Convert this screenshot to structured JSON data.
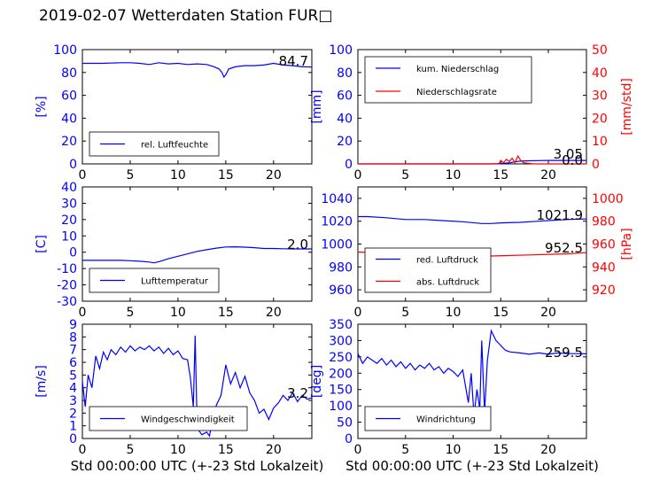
{
  "title": "2019-02-07 Wetterdaten Station FUR□",
  "colors": {
    "blue": "#0000ff",
    "red": "#ff0000",
    "black": "#000000"
  },
  "chart_data": [
    {
      "type": "line",
      "xlim": [
        0,
        24
      ],
      "xticks": [
        0,
        5,
        10,
        15,
        20
      ],
      "ylabel": "[%]",
      "ylim": [
        0,
        100
      ],
      "yticks": [
        0,
        20,
        40,
        60,
        80,
        100
      ],
      "legend": {
        "placement": "lower-left",
        "entries": [
          "rel. Luftfeuchte"
        ]
      },
      "annotations": [
        "84.7"
      ],
      "series": [
        {
          "name": "rel. Luftfeuchte",
          "color": "#0000ff",
          "x": [
            0,
            2,
            4,
            5,
            6,
            7,
            8,
            9,
            10,
            11,
            12,
            13,
            13.8,
            14.3,
            14.6,
            14.8,
            15,
            15.3,
            16,
            17,
            18,
            19,
            20,
            21,
            22,
            23,
            24
          ],
          "y": [
            88,
            88,
            88.5,
            88.5,
            88,
            87,
            88.5,
            87.5,
            88,
            87,
            87.5,
            87,
            85,
            83,
            80,
            76,
            78,
            83,
            85,
            86,
            86,
            86.5,
            88,
            86.5,
            86,
            85,
            84.7
          ]
        }
      ]
    },
    {
      "type": "line",
      "xlim": [
        0,
        24
      ],
      "xticks": [
        0,
        5,
        10,
        15,
        20
      ],
      "ylabel": "[mm]",
      "ylim": [
        0,
        100
      ],
      "yticks": [
        0,
        20,
        40,
        60,
        80,
        100
      ],
      "y2label": "[mm/std]",
      "y2lim": [
        0,
        50
      ],
      "y2ticks": [
        0,
        10,
        20,
        30,
        40,
        50
      ],
      "legend": {
        "placement": "upper-left",
        "entries": [
          "kum. Niederschlag",
          "Niederschlagsrate"
        ]
      },
      "annotations": [
        "3.05",
        "0.0"
      ],
      "series": [
        {
          "name": "kum. Niederschlag",
          "color": "#0000ff",
          "axis": "left",
          "x": [
            0,
            14,
            15,
            16,
            16.5,
            17,
            18,
            19,
            20,
            21,
            22,
            24
          ],
          "y": [
            0,
            0,
            0.3,
            1.0,
            1.8,
            2.4,
            2.7,
            2.9,
            3.0,
            3.05,
            3.05,
            3.05
          ]
        },
        {
          "name": "Niederschlagsrate",
          "color": "#ff0000",
          "axis": "right",
          "x": [
            0,
            14.8,
            15,
            15.3,
            15.6,
            15.9,
            16.2,
            16.5,
            16.8,
            17.1,
            17.4,
            17.8,
            18.5,
            24
          ],
          "y": [
            0,
            0,
            1.5,
            0.5,
            2.0,
            1.0,
            2.5,
            0.5,
            3.5,
            1.5,
            0.5,
            0.3,
            0,
            0
          ]
        }
      ]
    },
    {
      "type": "line",
      "xlim": [
        0,
        24
      ],
      "xticks": [
        0,
        5,
        10,
        15,
        20
      ],
      "ylabel": "[C]",
      "ylim": [
        -30,
        40
      ],
      "yticks": [
        -30,
        -20,
        -10,
        0,
        10,
        20,
        30,
        40
      ],
      "legend": {
        "placement": "lower-left",
        "entries": [
          "Lufttemperatur"
        ]
      },
      "annotations": [
        "2.0"
      ],
      "series": [
        {
          "name": "Lufttemperatur",
          "color": "#0000ff",
          "x": [
            0,
            2,
            4,
            5,
            6,
            7,
            7.5,
            8,
            9,
            10,
            11,
            12,
            13,
            14,
            15,
            16,
            17,
            18,
            19,
            20,
            21,
            22,
            23,
            24
          ],
          "y": [
            -5,
            -5,
            -5,
            -5.2,
            -5.5,
            -6,
            -6.5,
            -5.8,
            -4,
            -2.5,
            -1,
            0.5,
            1.5,
            2.5,
            3.2,
            3.3,
            3.1,
            2.8,
            2.3,
            2.3,
            2.1,
            2.0,
            2.0,
            2.0
          ]
        }
      ]
    },
    {
      "type": "line",
      "xlim": [
        0,
        24
      ],
      "xticks": [
        0,
        5,
        10,
        15,
        20
      ],
      "ylim": [
        950,
        1050
      ],
      "yticks": [
        960,
        980,
        1000,
        1020,
        1040
      ],
      "y2label": "[hPa]",
      "y2lim": [
        910,
        1010
      ],
      "y2ticks": [
        920,
        940,
        960,
        980,
        1000
      ],
      "legend": {
        "placement": "lower-left",
        "entries": [
          "red. Luftdruck",
          "abs. Luftdruck"
        ]
      },
      "annotations": [
        "1021.9",
        "952.5"
      ],
      "series": [
        {
          "name": "red. Luftdruck",
          "color": "#0000ff",
          "axis": "left",
          "x": [
            0,
            1,
            3,
            5,
            7,
            9,
            11,
            13,
            14,
            15,
            17,
            19,
            21,
            22,
            23,
            24
          ],
          "y": [
            1024,
            1024,
            1023,
            1021.5,
            1021.5,
            1020.5,
            1019.5,
            1018,
            1018,
            1018.5,
            1019,
            1020,
            1021,
            1021.5,
            1021.8,
            1021.9
          ]
        },
        {
          "name": "abs. Luftdruck",
          "color": "#ff0000",
          "axis": "right",
          "x": [
            0,
            2,
            4,
            6,
            8,
            10,
            12,
            14,
            16,
            18,
            20,
            22,
            24
          ],
          "y": [
            953,
            952.5,
            951.5,
            950.5,
            950,
            949.5,
            949.5,
            949.5,
            950,
            950.5,
            951,
            951.5,
            952.5
          ]
        }
      ]
    },
    {
      "type": "line",
      "xlim": [
        0,
        24
      ],
      "xticks": [
        0,
        5,
        10,
        15,
        20
      ],
      "xlabel": "Std 00:00:00 UTC (+-23 Std Lokalzeit)",
      "ylabel": "[m/s]",
      "ylim": [
        0,
        9
      ],
      "yticks": [
        0,
        1,
        2,
        3,
        4,
        5,
        6,
        7,
        8,
        9
      ],
      "legend": {
        "placement": "lower-left",
        "entries": [
          "Windgeschwindigkeit"
        ]
      },
      "annotations": [
        "3.2"
      ],
      "series": [
        {
          "name": "Windgeschwindigkeit",
          "color": "#0000ff",
          "x": [
            0,
            0.3,
            0.6,
            1,
            1.4,
            1.8,
            2.2,
            2.6,
            3,
            3.5,
            4,
            4.5,
            5,
            5.5,
            6,
            6.5,
            7,
            7.5,
            8,
            8.5,
            9,
            9.5,
            10,
            10.5,
            11,
            11.3,
            11.6,
            11.8,
            12,
            12.2,
            12.5,
            13,
            13.3,
            13.6,
            14,
            14.5,
            15,
            15.5,
            16,
            16.5,
            17,
            17.5,
            18,
            18.5,
            19,
            19.5,
            20,
            20.5,
            21,
            21.5,
            22,
            22.5,
            23,
            23.5,
            24
          ],
          "y": [
            4.5,
            2.5,
            5.0,
            4.0,
            6.5,
            5.5,
            6.8,
            6.2,
            7.0,
            6.6,
            7.2,
            6.8,
            7.3,
            6.9,
            7.2,
            7.0,
            7.3,
            6.9,
            7.2,
            6.7,
            7.1,
            6.6,
            6.9,
            6.3,
            6.2,
            4.8,
            2.5,
            8.1,
            1.2,
            0.6,
            0.3,
            0.5,
            0.2,
            1.5,
            2.6,
            3.4,
            5.8,
            4.3,
            5.2,
            4.0,
            4.9,
            3.6,
            3.0,
            2.0,
            2.3,
            1.5,
            2.4,
            2.8,
            3.4,
            3.0,
            3.6,
            2.9,
            3.4,
            3.1,
            3.2
          ]
        }
      ]
    },
    {
      "type": "line",
      "xlim": [
        0,
        24
      ],
      "xticks": [
        0,
        5,
        10,
        15,
        20
      ],
      "xlabel": "Std 00:00:00 UTC (+-23 Std Lokalzeit)",
      "ylabel": "[deg]",
      "ylim": [
        0,
        350
      ],
      "yticks": [
        0,
        50,
        100,
        150,
        200,
        250,
        300,
        350
      ],
      "legend": {
        "placement": "lower-left",
        "entries": [
          "Windrichtung"
        ]
      },
      "annotations": [
        "259.5"
      ],
      "series": [
        {
          "name": "Windrichtung",
          "color": "#0000ff",
          "x": [
            0,
            0.5,
            1,
            1.5,
            2,
            2.5,
            3,
            3.5,
            4,
            4.5,
            5,
            5.5,
            6,
            6.5,
            7,
            7.5,
            8,
            8.5,
            9,
            9.5,
            10,
            10.5,
            11,
            11.3,
            11.6,
            11.9,
            12.2,
            12.5,
            12.8,
            13,
            13.3,
            13.6,
            14,
            14.5,
            15,
            15.5,
            16,
            17,
            18,
            19,
            20,
            21,
            22,
            23,
            24
          ],
          "y": [
            260,
            230,
            250,
            240,
            230,
            245,
            225,
            240,
            220,
            235,
            215,
            230,
            210,
            225,
            215,
            230,
            210,
            220,
            200,
            215,
            205,
            190,
            210,
            160,
            110,
            200,
            70,
            150,
            90,
            300,
            80,
            240,
            330,
            300,
            285,
            270,
            265,
            262,
            258,
            262,
            258,
            262,
            260,
            260,
            259.5
          ]
        }
      ]
    }
  ]
}
